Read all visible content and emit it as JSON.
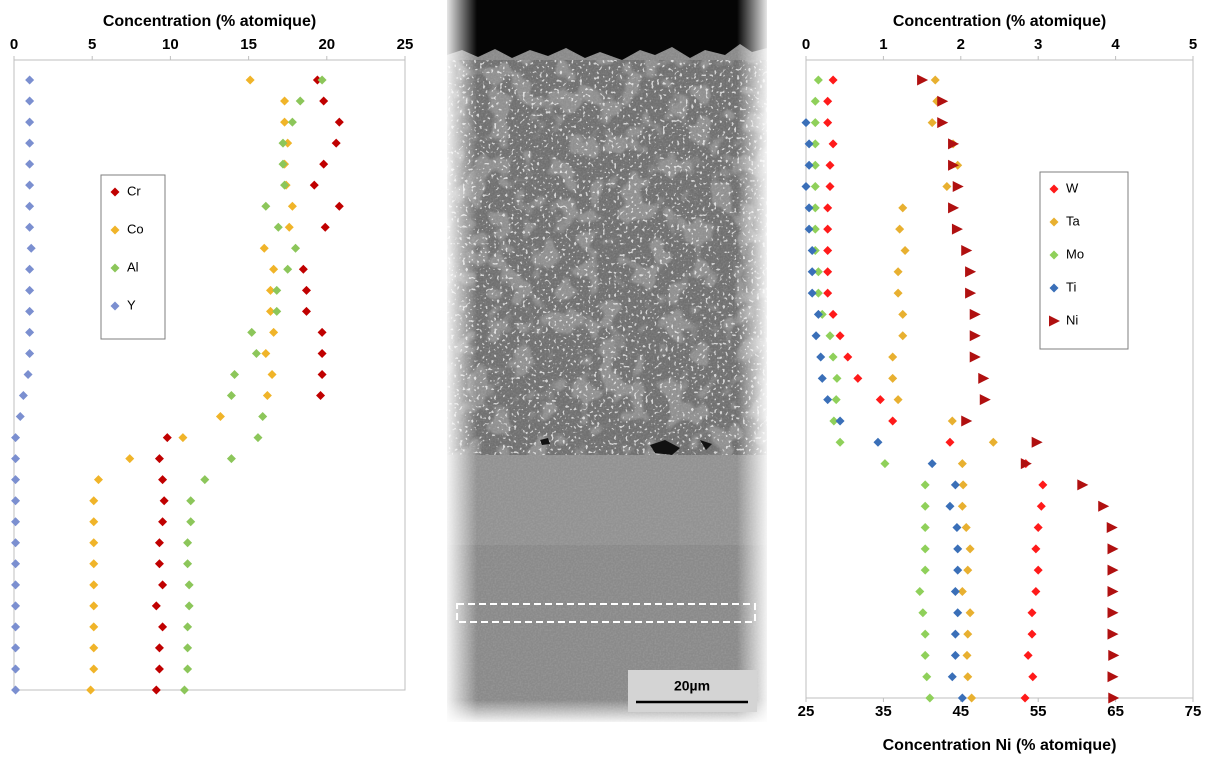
{
  "chart_data": [
    {
      "type": "scatter",
      "title": "Concentration (% atomique)",
      "xlim": [
        0,
        25
      ],
      "xticks": [
        0,
        5,
        10,
        15,
        20,
        25
      ],
      "categories": [
        null,
        null,
        null,
        null,
        null,
        null,
        null,
        null,
        null,
        null,
        null,
        null,
        null,
        null,
        null,
        null,
        null,
        null,
        null,
        null,
        null,
        null,
        null,
        null,
        null,
        null,
        null,
        null,
        null,
        null
      ],
      "legend": "upper left",
      "grid": false,
      "series": [
        {
          "name": "Cr",
          "color": "#c00000",
          "marker": "diamond",
          "values": [
            19.4,
            19.8,
            20.8,
            20.6,
            19.8,
            19.2,
            20.8,
            19.9,
            null,
            18.5,
            18.7,
            18.7,
            19.7,
            19.7,
            19.7,
            19.6,
            null,
            9.8,
            9.3,
            9.5,
            9.6,
            9.5,
            9.3,
            9.3,
            9.5,
            9.1,
            9.5,
            9.3,
            9.3,
            9.1
          ]
        },
        {
          "name": "Co",
          "color": "#f0b429",
          "marker": "diamond",
          "values": [
            15.1,
            17.3,
            17.3,
            17.5,
            17.3,
            17.4,
            17.8,
            17.6,
            16.0,
            16.6,
            16.4,
            16.4,
            16.6,
            16.1,
            16.5,
            16.2,
            13.2,
            10.8,
            7.4,
            5.4,
            5.1,
            5.1,
            5.1,
            5.1,
            5.1,
            5.1,
            5.1,
            5.1,
            5.1,
            4.9
          ]
        },
        {
          "name": "Al",
          "color": "#8cc65a",
          "marker": "diamond",
          "values": [
            19.7,
            18.3,
            17.8,
            17.2,
            17.2,
            17.3,
            16.1,
            16.9,
            18.0,
            17.5,
            16.8,
            16.8,
            15.2,
            15.5,
            14.1,
            13.9,
            15.9,
            15.6,
            13.9,
            12.2,
            11.3,
            11.3,
            11.1,
            11.1,
            11.2,
            11.2,
            11.1,
            11.1,
            11.1,
            10.9
          ]
        },
        {
          "name": "Y",
          "color": "#7b8fd0",
          "marker": "diamond",
          "values": [
            1.0,
            1.0,
            1.0,
            1.0,
            1.0,
            1.0,
            1.0,
            1.0,
            1.1,
            1.0,
            1.0,
            1.0,
            1.0,
            1.0,
            0.9,
            0.6,
            0.4,
            0.1,
            0.1,
            0.1,
            0.1,
            0.1,
            0.1,
            0.1,
            0.1,
            0.1,
            0.1,
            0.1,
            0.1,
            0.1
          ]
        }
      ]
    },
    {
      "type": "scatter",
      "title": "Concentration (% atomique)",
      "xlim": [
        0,
        5
      ],
      "xticks": [
        0,
        1,
        2,
        3,
        4,
        5
      ],
      "x2label": "Concentration Ni (% atomique)",
      "x2lim": [
        25,
        75
      ],
      "x2ticks": [
        25,
        35,
        45,
        55,
        65,
        75
      ],
      "categories": [
        null,
        null,
        null,
        null,
        null,
        null,
        null,
        null,
        null,
        null,
        null,
        null,
        null,
        null,
        null,
        null,
        null,
        null,
        null,
        null,
        null,
        null,
        null,
        null,
        null,
        null,
        null,
        null,
        null,
        null
      ],
      "legend": "upper right",
      "grid": false,
      "series": [
        {
          "name": "W",
          "color": "#ff1a1a",
          "marker": "diamond",
          "values": [
            0.35,
            0.28,
            0.28,
            0.35,
            0.31,
            0.31,
            0.28,
            0.28,
            0.28,
            0.28,
            0.28,
            0.35,
            0.44,
            0.54,
            0.67,
            0.96,
            1.12,
            1.86,
            2.84,
            3.06,
            3.04,
            3.0,
            2.97,
            3.0,
            2.97,
            2.92,
            2.92,
            2.87,
            2.93,
            2.83
          ]
        },
        {
          "name": "Ta",
          "color": "#e8b030",
          "marker": "diamond",
          "values": [
            1.67,
            1.69,
            1.63,
            1.9,
            1.96,
            1.82,
            1.25,
            1.21,
            1.28,
            1.19,
            1.19,
            1.25,
            1.25,
            1.12,
            1.12,
            1.19,
            1.89,
            2.42,
            2.02,
            2.03,
            2.02,
            2.07,
            2.12,
            2.09,
            2.02,
            2.12,
            2.09,
            2.08,
            2.09,
            2.14
          ]
        },
        {
          "name": "Mo",
          "color": "#8fd05a",
          "marker": "diamond",
          "values": [
            0.16,
            0.12,
            0.12,
            0.12,
            0.12,
            0.12,
            0.12,
            0.12,
            0.12,
            0.16,
            0.16,
            0.21,
            0.31,
            0.35,
            0.4,
            0.39,
            0.36,
            0.44,
            1.02,
            1.54,
            1.54,
            1.54,
            1.54,
            1.54,
            1.47,
            1.51,
            1.54,
            1.54,
            1.56,
            1.6
          ]
        },
        {
          "name": "Ti",
          "color": "#3a6fb8",
          "marker": "diamond",
          "values": [
            null,
            null,
            0.0,
            0.04,
            0.04,
            0.0,
            0.04,
            0.04,
            0.08,
            0.08,
            0.08,
            0.16,
            0.13,
            0.19,
            0.21,
            0.28,
            0.44,
            0.93,
            1.63,
            1.93,
            1.86,
            1.95,
            1.96,
            1.96,
            1.93,
            1.96,
            1.93,
            1.93,
            1.89,
            2.02
          ]
        },
        {
          "name": "Ni",
          "color": "#b01010",
          "marker": "triangle",
          "axis": "x2",
          "values": [
            40.0,
            42.6,
            42.6,
            44.0,
            44.0,
            44.6,
            44.0,
            44.5,
            45.7,
            46.2,
            46.2,
            46.8,
            46.8,
            46.8,
            47.9,
            48.1,
            45.7,
            54.8,
            53.4,
            60.7,
            63.4,
            64.5,
            64.6,
            64.6,
            64.6,
            64.6,
            64.6,
            64.7,
            64.6,
            64.7
          ]
        }
      ]
    }
  ],
  "image": {
    "scale_bar_label": "20µm"
  }
}
